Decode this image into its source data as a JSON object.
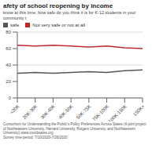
{
  "chart_data": {
    "type": "line",
    "title": "afety of school reopening by income",
    "subtitle": "know at this time, how safe do you think it is for K-12 students in your community t",
    "categories": [
      "<20K",
      "20K-30K",
      "30K-40K",
      "40K-50K",
      "50K-75K",
      "75K-100K",
      "100K-150K",
      "150K+"
    ],
    "series": [
      {
        "name": "safe",
        "color": "#555555",
        "values": [
          30,
          31,
          30,
          31,
          32,
          31,
          33,
          34
        ]
      },
      {
        "name": "Not very safe or not at all",
        "color": "#c0282d",
        "values": [
          64,
          63,
          64,
          63,
          62,
          63,
          61,
          60
        ]
      }
    ],
    "ylim": [
      0,
      80
    ],
    "yticks": [
      0,
      20,
      40,
      60,
      80
    ],
    "grid": true,
    "legend": "top",
    "marker": "none",
    "source": "Consortium for Understanding the Public's Policy Preferences Across States (A joint project of Northeastern University, Harvard University, Rutgers University, and Northwestern University) www.covidstates.org",
    "note": "Survey time period: 7/10/2020-7/26/2020"
  }
}
